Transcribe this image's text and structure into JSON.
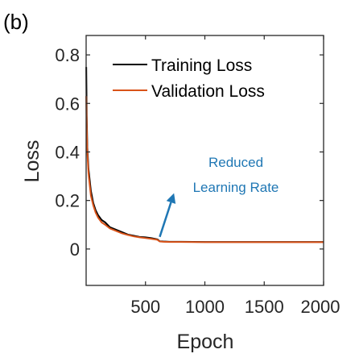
{
  "panel_label": "(b)",
  "chart_data": {
    "type": "line",
    "title": "",
    "xlabel": "Epoch",
    "ylabel": "Loss",
    "xlim": [
      0,
      2000
    ],
    "ylim": [
      -0.15,
      0.88
    ],
    "xticks": [
      500,
      1000,
      1500,
      2000
    ],
    "xtick_labels": [
      "500",
      "1000",
      "1500",
      "2000"
    ],
    "yticks": [
      0,
      0.2,
      0.4,
      0.6,
      0.8
    ],
    "ytick_labels": [
      "0",
      "0.2",
      "0.4",
      "0.6",
      "0.8"
    ],
    "grid": false,
    "legend_position": "top-right",
    "series": [
      {
        "name": "Training Loss",
        "color": "#000000",
        "x": [
          1,
          5,
          10,
          20,
          40,
          60,
          80,
          100,
          130,
          160,
          200,
          250,
          300,
          350,
          400,
          450,
          500,
          550,
          600,
          620,
          650,
          700,
          800,
          1000,
          1200,
          1500,
          1800,
          2000
        ],
        "y": [
          0.75,
          0.55,
          0.42,
          0.33,
          0.24,
          0.19,
          0.16,
          0.14,
          0.12,
          0.11,
          0.09,
          0.08,
          0.07,
          0.06,
          0.055,
          0.05,
          0.048,
          0.045,
          0.04,
          0.032,
          0.031,
          0.03,
          0.03,
          0.029,
          0.029,
          0.029,
          0.029,
          0.029
        ]
      },
      {
        "name": "Validation Loss",
        "color": "#d95319",
        "x": [
          1,
          5,
          10,
          20,
          40,
          60,
          80,
          100,
          130,
          160,
          200,
          250,
          300,
          350,
          400,
          450,
          500,
          550,
          600,
          620,
          650,
          700,
          800,
          1000,
          1200,
          1500,
          1800,
          2000
        ],
        "y": [
          0.63,
          0.5,
          0.4,
          0.31,
          0.22,
          0.18,
          0.15,
          0.13,
          0.11,
          0.1,
          0.085,
          0.075,
          0.065,
          0.058,
          0.052,
          0.048,
          0.045,
          0.042,
          0.038,
          0.031,
          0.03,
          0.029,
          0.029,
          0.028,
          0.028,
          0.028,
          0.028,
          0.028
        ]
      }
    ],
    "annotation": {
      "text_lines": [
        "Reduced",
        "Learning Rate"
      ],
      "color": "#1f77b4",
      "arrow_from": [
        620,
        0.05
      ],
      "arrow_to": [
        740,
        0.23
      ]
    }
  }
}
